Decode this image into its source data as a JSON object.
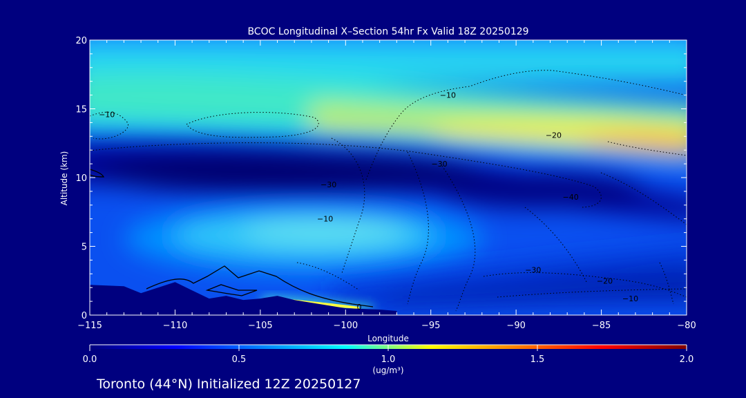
{
  "chart_data": {
    "type": "heatmap",
    "title": "BCOC Longitudinal X–Section 54hr  Fx Valid 18Z 20250129",
    "xlabel": "Longitude",
    "ylabel": "Altitude (km)",
    "xlim": [
      -115,
      -80
    ],
    "ylim": [
      0,
      20
    ],
    "xticks": [
      -115,
      -110,
      -105,
      -100,
      -95,
      -90,
      -85,
      -80
    ],
    "xtick_labels": [
      "−115",
      "−110",
      "−105",
      "−100",
      "−95",
      "−90",
      "−85",
      "−80"
    ],
    "yticks": [
      0,
      5,
      10,
      15,
      20
    ],
    "ytick_labels": [
      "0",
      "5",
      "10",
      "15",
      "20"
    ],
    "colorbar": {
      "min": 0.0,
      "max": 2.0,
      "ticks": [
        0.0,
        0.5,
        1.0,
        1.5,
        2.0
      ],
      "tick_labels": [
        "0.0",
        "0.5",
        "1.0",
        "1.5",
        "2.0"
      ],
      "unit": "(ug/m³)",
      "colors": [
        "#00007f",
        "#0000ff",
        "#0080ff",
        "#00ffff",
        "#ffff00",
        "#ff8000",
        "#ff0000",
        "#7f0000"
      ]
    },
    "field_features": [
      {
        "lon": -97,
        "alt": 17,
        "value": 0.7
      },
      {
        "lon": -84,
        "alt": 12.2,
        "value": 1.35
      },
      {
        "lon": -104,
        "alt": 6.5,
        "value": 0.75
      },
      {
        "lon": -105,
        "alt": 10.5,
        "value": 0.05
      },
      {
        "lon": -98,
        "alt": 0.6,
        "value": 1.2
      }
    ],
    "contour_labels": [
      {
        "text": "−10",
        "lon": -114,
        "alt": 14.6
      },
      {
        "text": "−10",
        "lon": -94,
        "alt": 16.0
      },
      {
        "text": "−20",
        "lon": -87.8,
        "alt": 13.1
      },
      {
        "text": "−30",
        "lon": -101,
        "alt": 9.5
      },
      {
        "text": "−30",
        "lon": -94.5,
        "alt": 11.0
      },
      {
        "text": "−40",
        "lon": -86.8,
        "alt": 8.6
      },
      {
        "text": "−10",
        "lon": -101.2,
        "alt": 7.0
      },
      {
        "text": "−30",
        "lon": -89,
        "alt": 3.3
      },
      {
        "text": "−20",
        "lon": -84.8,
        "alt": 2.5
      },
      {
        "text": "−10",
        "lon": -83.3,
        "alt": 1.2
      },
      {
        "text": "0",
        "lon": -99.2,
        "alt": 0.6
      }
    ],
    "terrain_profile": {
      "lon": [
        -115,
        -113,
        -112,
        -110,
        -109,
        -108,
        -107,
        -106,
        -105,
        -104,
        -103,
        -102,
        -101,
        -100,
        -99,
        -98,
        -97
      ],
      "alt": [
        2.2,
        2.1,
        1.6,
        2.4,
        1.8,
        1.2,
        1.4,
        1.1,
        1.2,
        1.4,
        1.1,
        0.9,
        0.7,
        0.5,
        0.45,
        0.4,
        0.3
      ]
    }
  },
  "footer": {
    "caption": "Toronto (44°N) Initialized 12Z 20250127"
  }
}
